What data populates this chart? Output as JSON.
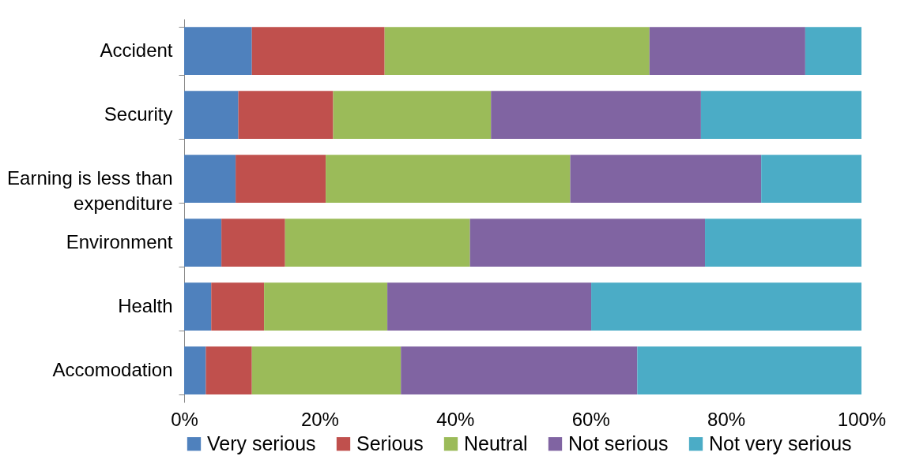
{
  "chart_data": {
    "type": "bar",
    "orientation": "horizontal",
    "stacked": true,
    "categories": [
      "Accident",
      "Security",
      "Earning is less than expenditure",
      "Environment",
      "Health",
      "Accomodation"
    ],
    "series": [
      {
        "name": "Very serious",
        "color": "#4f81bd",
        "values": [
          10,
          8,
          7.6,
          5.5,
          4,
          3.2
        ]
      },
      {
        "name": "Serious",
        "color": "#c0504d",
        "values": [
          19.6,
          14,
          13.3,
          9.4,
          7.8,
          6.8
        ]
      },
      {
        "name": "Neutral",
        "color": "#9bbb59",
        "values": [
          39.1,
          23.3,
          36.1,
          27.3,
          18.2,
          22
        ]
      },
      {
        "name": "Not serious",
        "color": "#8064a2",
        "values": [
          23,
          31,
          28.2,
          34.7,
          30.1,
          34.9
        ]
      },
      {
        "name": "Not very serious",
        "color": "#4bacc6",
        "values": [
          8.3,
          23.7,
          14.8,
          23.1,
          39.9,
          33.1
        ]
      }
    ],
    "xlim": [
      0,
      100
    ],
    "xticks": [
      {
        "value": 0,
        "label": "0%"
      },
      {
        "value": 20,
        "label": "20%"
      },
      {
        "value": 40,
        "label": "40%"
      },
      {
        "value": 60,
        "label": "60%"
      },
      {
        "value": 80,
        "label": "80%"
      },
      {
        "value": 100,
        "label": "100%"
      }
    ],
    "grid": false,
    "legend": "bottom"
  }
}
